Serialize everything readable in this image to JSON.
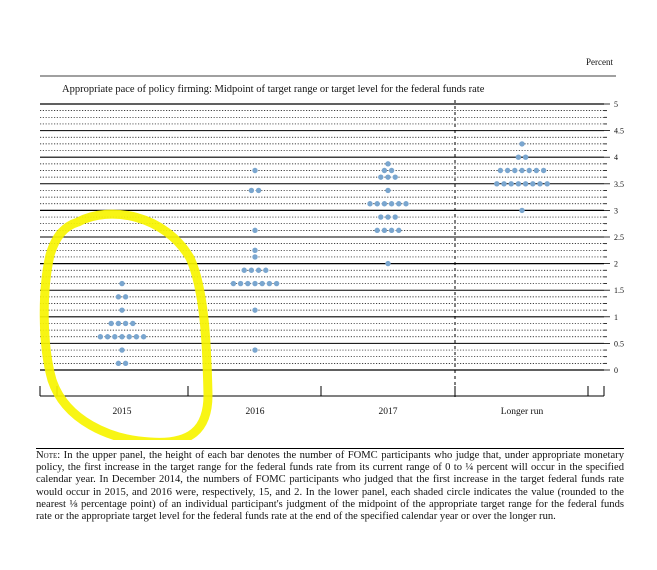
{
  "unit_label": "Percent",
  "note": {
    "head": "Note:",
    "body": "In the upper panel, the height of each bar denotes the number of FOMC participants who judge that, under appropriate monetary policy, the first increase in the target range for the federal funds rate from its current range of 0 to ¼ percent will occur in the specified calendar year. In December 2014, the numbers of FOMC participants who judged that the first increase in the target federal funds rate would occur in 2015, and 2016 were, respectively, 15, and 2. In the lower panel, each shaded circle indicates the value (rounded to the nearest ⅛ percentage point) of an individual participant's judgment of the midpoint of the appropriate target range for the federal funds rate or the appropriate target level for the federal funds rate at the end of the specified calendar year or over the longer run."
  },
  "colors": {
    "dot": "#7aa6cf",
    "highlight": "#f7f400",
    "line": "#000000"
  },
  "chart_data": {
    "type": "scatter",
    "title": "Appropriate pace of policy firming: Midpoint of target range or target level for the federal funds rate",
    "ylabel": "Percent",
    "ylim": [
      0,
      5
    ],
    "y_ticks": [
      "0",
      "0.5",
      "1",
      "1.5",
      "2",
      "2.5",
      "3",
      "3.5",
      "4",
      "4.5",
      "5"
    ],
    "y_tick_values": [
      0,
      0.5,
      1,
      1.5,
      2,
      2.5,
      3,
      3.5,
      4,
      4.5,
      5
    ],
    "categories": [
      "2015",
      "2016",
      "2017",
      "Longer run"
    ],
    "series": [
      {
        "category": "2015",
        "points": [
          {
            "y": 0.125,
            "count": 2
          },
          {
            "y": 0.375,
            "count": 1
          },
          {
            "y": 0.625,
            "count": 7
          },
          {
            "y": 0.875,
            "count": 4
          },
          {
            "y": 1.125,
            "count": 1
          },
          {
            "y": 1.375,
            "count": 2
          },
          {
            "y": 1.625,
            "count": 1
          }
        ]
      },
      {
        "category": "2016",
        "points": [
          {
            "y": 0.375,
            "count": 1
          },
          {
            "y": 1.125,
            "count": 1
          },
          {
            "y": 1.625,
            "count": 7
          },
          {
            "y": 1.875,
            "count": 4
          },
          {
            "y": 2.125,
            "count": 1
          },
          {
            "y": 2.25,
            "count": 1
          },
          {
            "y": 2.625,
            "count": 1
          },
          {
            "y": 3.375,
            "count": 2
          },
          {
            "y": 3.75,
            "count": 1
          }
        ]
      },
      {
        "category": "2017",
        "points": [
          {
            "y": 2.0,
            "count": 1
          },
          {
            "y": 2.625,
            "count": 4
          },
          {
            "y": 2.875,
            "count": 3
          },
          {
            "y": 3.125,
            "count": 6
          },
          {
            "y": 3.375,
            "count": 1
          },
          {
            "y": 3.625,
            "count": 3
          },
          {
            "y": 3.75,
            "count": 2
          },
          {
            "y": 3.875,
            "count": 1
          }
        ]
      },
      {
        "category": "Longer run",
        "points": [
          {
            "y": 3.0,
            "count": 1
          },
          {
            "y": 3.5,
            "count": 8
          },
          {
            "y": 3.75,
            "count": 7
          },
          {
            "y": 4.0,
            "count": 2
          },
          {
            "y": 4.25,
            "count": 1
          }
        ]
      }
    ],
    "legend": "none",
    "grid": true
  }
}
